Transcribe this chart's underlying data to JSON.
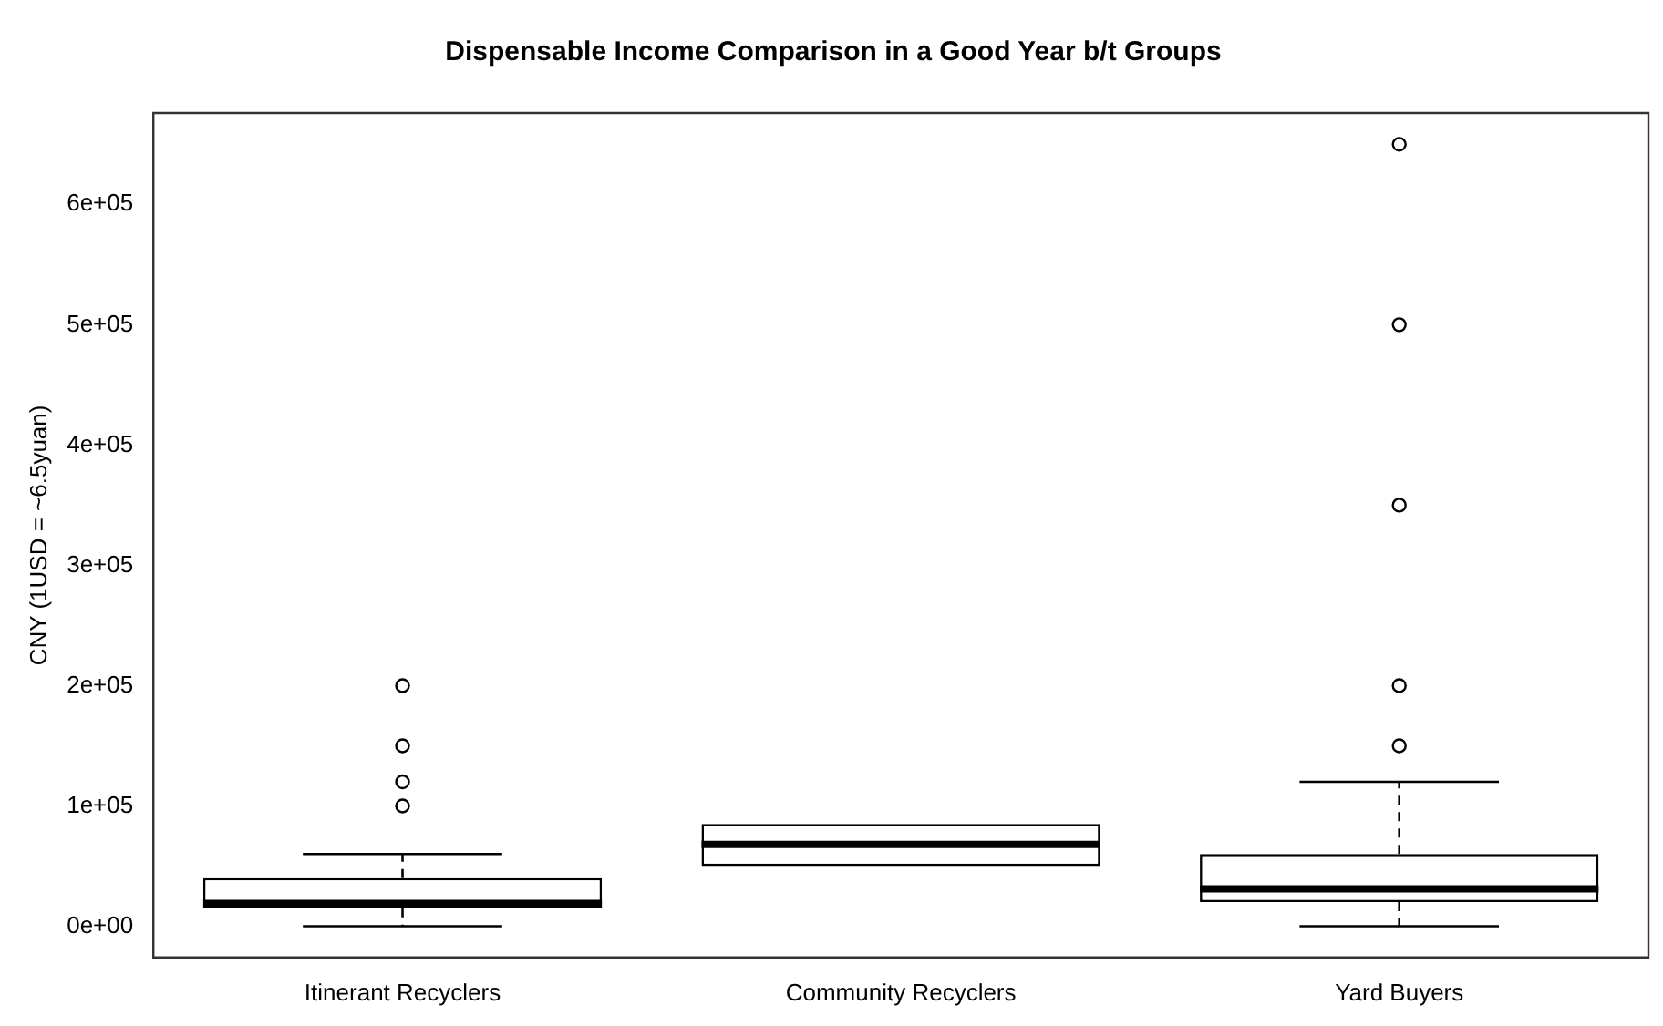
{
  "chart_data": {
    "type": "box",
    "title": "Dispensable Income Comparison in a Good Year b/t Groups",
    "ylabel": "CNY (1USD = ~6.5yuan)",
    "categories": [
      "Itinerant Recyclers",
      "Community Recyclers",
      "Yard Buyers"
    ],
    "boxes": [
      {
        "low": 0,
        "q1": 15000,
        "median": 19000,
        "q3": 40000,
        "high": 60000,
        "outliers": [
          100000,
          120000,
          150000,
          200000
        ]
      },
      {
        "low": 50000,
        "q1": 50000,
        "median": 68000,
        "q3": 85000,
        "high": 85000
      },
      {
        "low": 0,
        "q1": 20000,
        "median": 31000,
        "q3": 60000,
        "high": 120000,
        "outliers": [
          150000,
          200000,
          350000,
          500000,
          650000
        ]
      }
    ],
    "color": "#000000",
    "ylim": [
      -26000,
      676000
    ],
    "yticks": [
      {
        "value": 0,
        "label": "0e+00"
      },
      {
        "value": 100000,
        "label": "1e+05"
      },
      {
        "value": 200000,
        "label": "2e+05"
      },
      {
        "value": 300000,
        "label": "3e+05"
      },
      {
        "value": 400000,
        "label": "4e+05"
      },
      {
        "value": 500000,
        "label": "5e+05"
      },
      {
        "value": 600000,
        "label": "6e+05"
      }
    ],
    "grid": false,
    "legend": false
  }
}
